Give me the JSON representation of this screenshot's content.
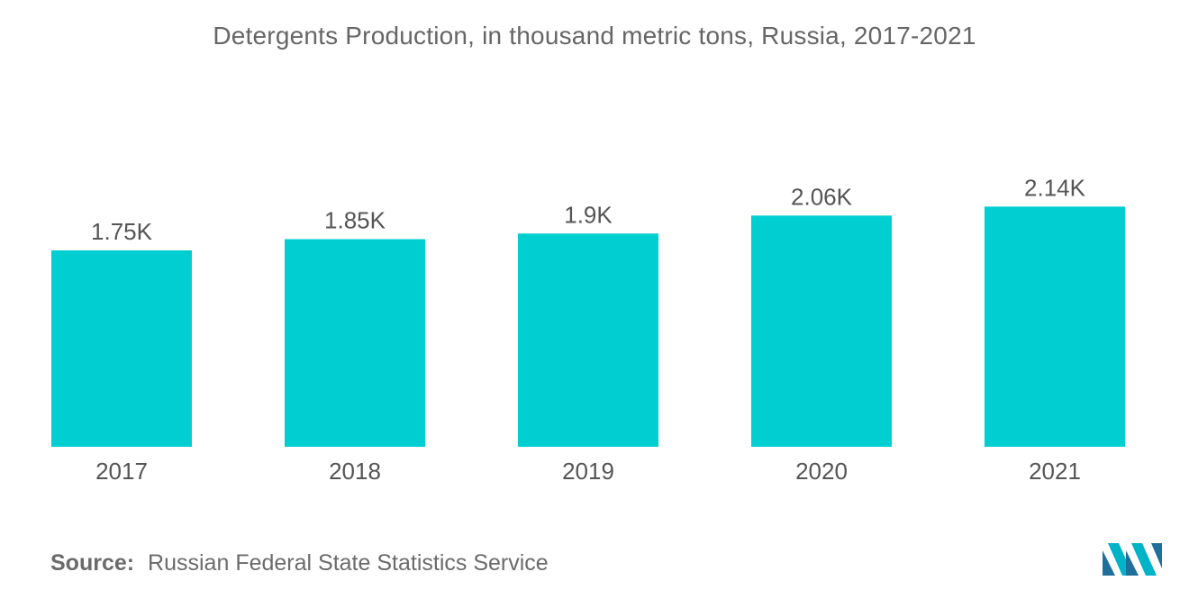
{
  "title": "Detergents Production, in thousand metric tons, Russia, 2017-2021",
  "source": {
    "label": "Source:",
    "text": "Russian Federal State Statistics Service"
  },
  "colors": {
    "bar": "#00ced1",
    "text": "#555555",
    "title": "#666666"
  },
  "chart_data": {
    "type": "bar",
    "title": "Detergents Production, in thousand metric tons, Russia, 2017-2021",
    "categories": [
      "2017",
      "2018",
      "2019",
      "2020",
      "2021"
    ],
    "values": [
      1.75,
      1.85,
      1.9,
      2.06,
      2.14
    ],
    "value_labels": [
      "1.75K",
      "1.85K",
      "1.9K",
      "2.06K",
      "2.14K"
    ],
    "xlabel": "",
    "ylabel": "",
    "grid": false,
    "legend": "none"
  }
}
